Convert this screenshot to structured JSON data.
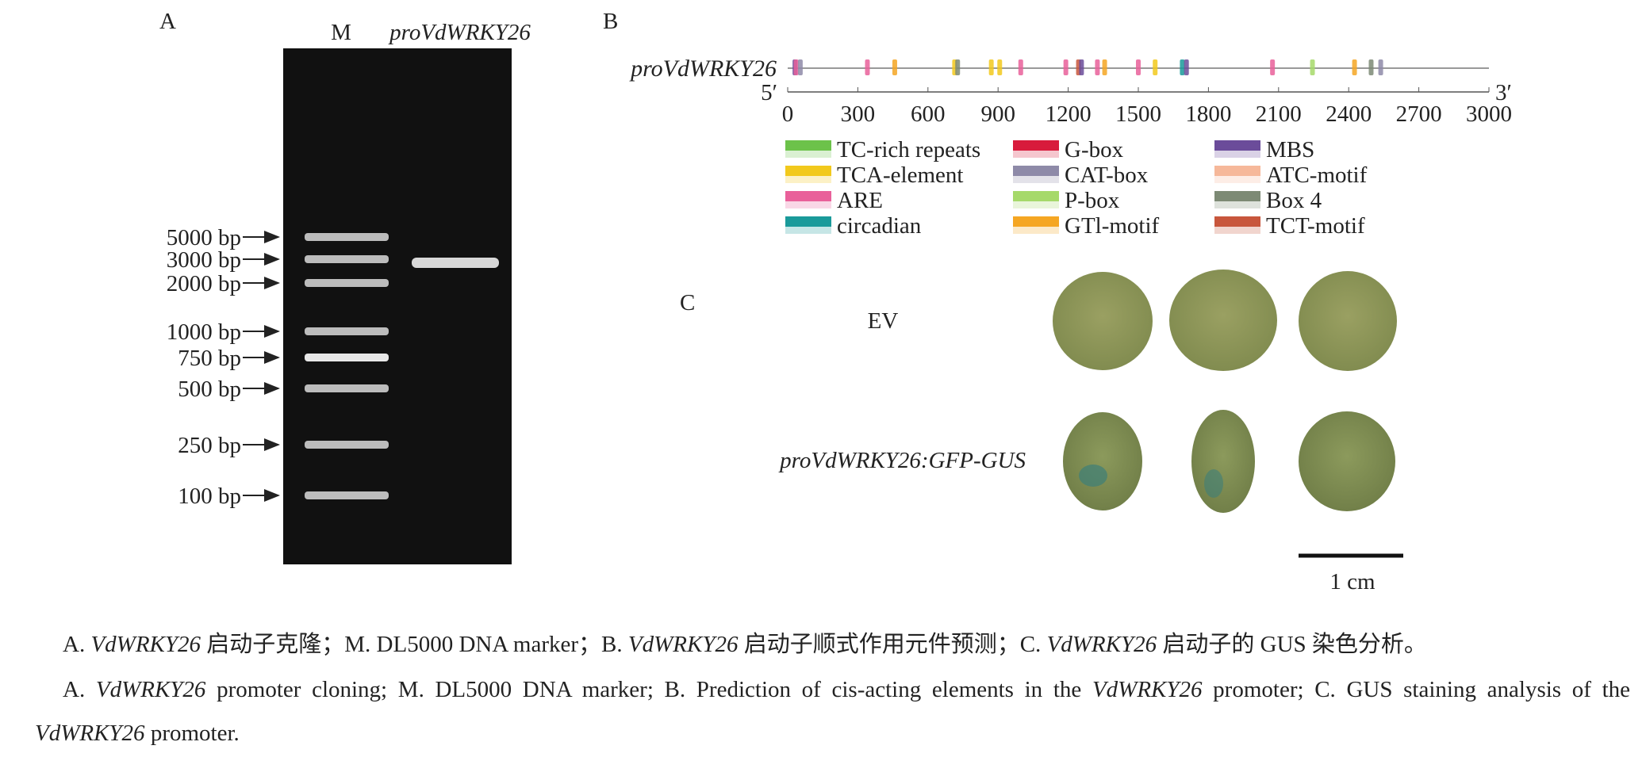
{
  "panel_a": {
    "label": "A",
    "lane_labels": [
      "M",
      "proVdWRKY26"
    ],
    "ladder": [
      "5000 bp",
      "3000 bp",
      "2000 bp",
      "1000 bp",
      "750 bp",
      "500 bp",
      "250 bp",
      "100 bp"
    ]
  },
  "panel_b": {
    "label": "B",
    "gene_label": "proVdWRKY26",
    "five_prime": "5′",
    "three_prime": "3′",
    "xlim": [
      0,
      3000
    ],
    "xticks": [
      0,
      300,
      600,
      900,
      1200,
      1500,
      1800,
      2100,
      2400,
      2700,
      3000
    ],
    "legend": [
      {
        "name": "TC-rich repeats",
        "color": "#6cc24a"
      },
      {
        "name": "TCA-element",
        "color": "#f2c91c"
      },
      {
        "name": "ARE",
        "color": "#e9609a"
      },
      {
        "name": "circadian",
        "color": "#1a9a9a"
      },
      {
        "name": "G-box",
        "color": "#d81b3c"
      },
      {
        "name": "CAT-box",
        "color": "#8e8aa8"
      },
      {
        "name": "P-box",
        "color": "#a6d96a"
      },
      {
        "name": "GTl-motif",
        "color": "#f5a623"
      },
      {
        "name": "MBS",
        "color": "#6b4c9a"
      },
      {
        "name": "ATC-motif",
        "color": "#f6b89a"
      },
      {
        "name": "Box 4",
        "color": "#7d8a75"
      },
      {
        "name": "TCT-motif",
        "color": "#c8563c"
      }
    ],
    "elements": [
      {
        "name": "MBS",
        "position": 31
      },
      {
        "name": "ARE",
        "position": 36
      },
      {
        "name": "CAT-box",
        "position": 54
      },
      {
        "name": "ARE",
        "position": 341
      },
      {
        "name": "GTl-motif",
        "position": 458
      },
      {
        "name": "TCA-element",
        "position": 714
      },
      {
        "name": "Box 4",
        "position": 727
      },
      {
        "name": "TCA-element",
        "position": 871
      },
      {
        "name": "TCA-element",
        "position": 907
      },
      {
        "name": "ARE",
        "position": 997
      },
      {
        "name": "ARE",
        "position": 1190
      },
      {
        "name": "TCT-motif",
        "position": 1244
      },
      {
        "name": "MBS",
        "position": 1257
      },
      {
        "name": "ARE",
        "position": 1325
      },
      {
        "name": "GTl-motif",
        "position": 1356
      },
      {
        "name": "ARE",
        "position": 1500
      },
      {
        "name": "TCA-element",
        "position": 1572
      },
      {
        "name": "circadian",
        "position": 1688
      },
      {
        "name": "MBS",
        "position": 1706
      },
      {
        "name": "ARE",
        "position": 2074
      },
      {
        "name": "P-box",
        "position": 2245
      },
      {
        "name": "GTl-motif",
        "position": 2425
      },
      {
        "name": "Box 4",
        "position": 2496
      },
      {
        "name": "CAT-box",
        "position": 2537
      }
    ]
  },
  "panel_c": {
    "label": "C",
    "rows": [
      "EV",
      "proVdWRKY26:GFP-GUS"
    ],
    "scale_bar": "1 cm"
  },
  "caption": {
    "zh": [
      {
        "text": "A. "
      },
      {
        "text": "VdWRKY26",
        "italic": true
      },
      {
        "text": " 启动子克隆；M. DL5000 DNA marker；B. "
      },
      {
        "text": "VdWRKY26",
        "italic": true
      },
      {
        "text": " 启动子顺式作用元件预测；C. "
      },
      {
        "text": "VdWRKY26",
        "italic": true
      },
      {
        "text": " 启动子的 GUS 染色分析。"
      }
    ],
    "en": [
      {
        "text": "A. "
      },
      {
        "text": "VdWRKY26",
        "italic": true
      },
      {
        "text": " promoter cloning; M. DL5000 DNA marker; B. Prediction of cis-acting elements in the "
      },
      {
        "text": "VdWRKY26",
        "italic": true
      },
      {
        "text": " promoter; C. GUS staining analysis of the "
      },
      {
        "text": "VdWRKY26",
        "italic": true
      },
      {
        "text": " promoter."
      }
    ]
  }
}
